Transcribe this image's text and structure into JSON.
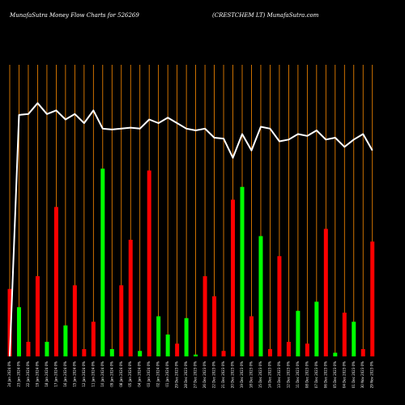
{
  "header": {
    "left": "MunafaSutra  Money Flow  Charts for 526269",
    "right": "(CRESTCHEM LT) MunafaSutra.com"
  },
  "colors": {
    "up": "#00ff00",
    "down": "#ff0000",
    "line": "#ffffff",
    "grid": "#ff8c00",
    "background": "#000000"
  },
  "chart_data": {
    "type": "bar",
    "title": "MunafaSutra  Money Flow  Charts for 526269",
    "subtitle": "(CRESTCHEM LT) MunafaSutra.com",
    "grid": true,
    "ylim": [
      0,
      100
    ],
    "categories": [
      "24 Jan 2024 0%",
      "23 Jan 2024 0%",
      "22 Jan 2024 0%",
      "19 Jan 2024 0%",
      "18 Jan 2024 0%",
      "17 Jan 2024 0%",
      "16 Jan 2024 0%",
      "15 Jan 2024 0%",
      "12 Jan 2024 0%",
      "11 Jan 2024 0%",
      "10 Jan 2024 0%",
      "09 Jan 2024 0%",
      "08 Jan 2024 0%",
      "05 Jan 2024 0%",
      "04 Jan 2024 0%",
      "03 Jan 2024 0%",
      "02 Jan 2024 0%",
      "01 Jan 2024 0%",
      "29 Dec 2023 0%",
      "28 Dec 2023 0%",
      "27 Dec 2023 0%",
      "26 Dec 2023 0%",
      "22 Dec 2023 0%",
      "21 Dec 2023 0%",
      "20 Dec 2023 0%",
      "19 Dec 2023 0%",
      "18 Dec 2023 0%",
      "15 Dec 2023 0%",
      "14 Dec 2023 0%",
      "13 Dec 2023 0%",
      "12 Dec 2023 0%",
      "11 Dec 2023 0%",
      "08 Dec 2023 0%",
      "07 Dec 2023 0%",
      "06 Dec 2023 0%",
      "05 Dec 2023 0%",
      "04 Dec 2023 0%",
      "01 Dec 2023 0%",
      "30 Nov 2023 0%",
      "29 Nov 2023 0%"
    ],
    "bars": [
      {
        "value": 37,
        "dir": "down"
      },
      {
        "value": 27,
        "dir": "up"
      },
      {
        "value": 8,
        "dir": "down"
      },
      {
        "value": 44,
        "dir": "down"
      },
      {
        "value": 8,
        "dir": "up"
      },
      {
        "value": 82,
        "dir": "down"
      },
      {
        "value": 17,
        "dir": "up"
      },
      {
        "value": 39,
        "dir": "down"
      },
      {
        "value": 4,
        "dir": "down"
      },
      {
        "value": 19,
        "dir": "down"
      },
      {
        "value": 103,
        "dir": "up"
      },
      {
        "value": 4,
        "dir": "up"
      },
      {
        "value": 39,
        "dir": "down"
      },
      {
        "value": 64,
        "dir": "down"
      },
      {
        "value": 3,
        "dir": "up"
      },
      {
        "value": 102,
        "dir": "down"
      },
      {
        "value": 22,
        "dir": "up"
      },
      {
        "value": 12,
        "dir": "up"
      },
      {
        "value": 7,
        "dir": "down"
      },
      {
        "value": 21,
        "dir": "up"
      },
      {
        "value": 1,
        "dir": "up"
      },
      {
        "value": 44,
        "dir": "down"
      },
      {
        "value": 33,
        "dir": "down"
      },
      {
        "value": 3,
        "dir": "down"
      },
      {
        "value": 86,
        "dir": "down"
      },
      {
        "value": 93,
        "dir": "up"
      },
      {
        "value": 22,
        "dir": "down"
      },
      {
        "value": 66,
        "dir": "up"
      },
      {
        "value": 4,
        "dir": "down"
      },
      {
        "value": 55,
        "dir": "down"
      },
      {
        "value": 8,
        "dir": "down"
      },
      {
        "value": 25,
        "dir": "up"
      },
      {
        "value": 7,
        "dir": "down"
      },
      {
        "value": 30,
        "dir": "up"
      },
      {
        "value": 70,
        "dir": "down"
      },
      {
        "value": 2,
        "dir": "up"
      },
      {
        "value": 24,
        "dir": "down"
      },
      {
        "value": 19,
        "dir": "up"
      },
      {
        "value": 4,
        "dir": "down"
      },
      {
        "value": 63,
        "dir": "down"
      }
    ],
    "line": [
      0,
      132.5,
      133,
      139,
      133,
      135,
      130,
      133,
      128,
      135,
      125,
      124.5,
      125,
      125.5,
      125,
      130,
      128,
      131,
      128,
      125,
      124,
      125,
      120,
      119.5,
      109,
      122,
      113,
      126,
      125,
      118,
      119,
      122,
      121,
      124,
      119,
      120,
      115,
      119,
      122,
      113
    ]
  }
}
